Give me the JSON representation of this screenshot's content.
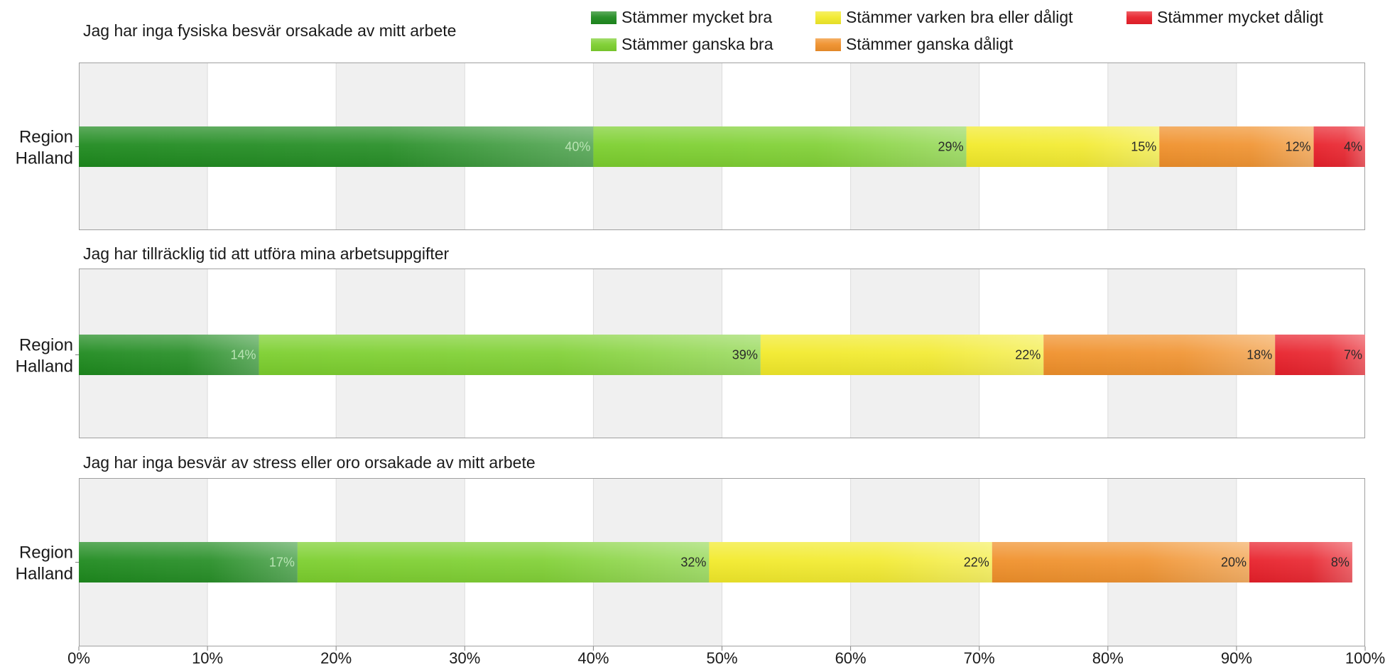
{
  "chart_data": {
    "type": "bar",
    "orientation": "horizontal",
    "stacked": true,
    "xlim": [
      0,
      100
    ],
    "xticks": [
      "0%",
      "10%",
      "20%",
      "30%",
      "40%",
      "50%",
      "60%",
      "70%",
      "80%",
      "90%",
      "100%"
    ],
    "grid": "alternating vertical bands",
    "legend_position": "top-right",
    "legend": [
      {
        "label": "Stämmer mycket bra",
        "color": "#1e8a1e"
      },
      {
        "label": "Stämmer ganska bra",
        "color": "#7ccf2e"
      },
      {
        "label": "Stämmer varken bra eller dåligt",
        "color": "#f2ea2a"
      },
      {
        "label": "Stämmer ganska dåligt",
        "color": "#f0902a"
      },
      {
        "label": "Stämmer mycket dåligt",
        "color": "#e8202a"
      }
    ],
    "panels": [
      {
        "title": "Jag har inga fysiska besvär orsakade av mitt arbete",
        "category": "Region Halland",
        "values": [
          40,
          29,
          15,
          12,
          4
        ],
        "labels": [
          "40%",
          "29%",
          "15%",
          "12%",
          "4%"
        ]
      },
      {
        "title": "Jag har tillräcklig tid att utföra mina arbetsuppgifter",
        "category": "Region Halland",
        "values": [
          14,
          39,
          22,
          18,
          7
        ],
        "labels": [
          "14%",
          "39%",
          "22%",
          "18%",
          "7%"
        ]
      },
      {
        "title": "Jag har inga besvär av stress eller oro orsakade av mitt arbete",
        "category": "Region Halland",
        "values": [
          17,
          32,
          22,
          20,
          8
        ],
        "labels": [
          "17%",
          "32%",
          "22%",
          "20%",
          "8%"
        ]
      }
    ]
  }
}
